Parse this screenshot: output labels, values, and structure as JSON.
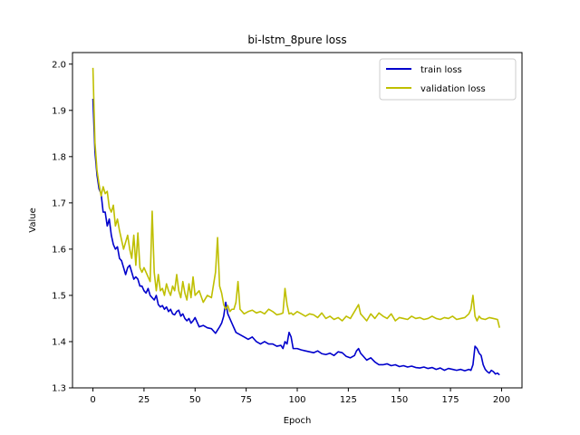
{
  "chart_data": {
    "type": "line",
    "title": "bi-lstm_8pure loss",
    "xlabel": "Epoch",
    "ylabel": "Value",
    "xlim": [
      -10,
      210
    ],
    "ylim": [
      1.3,
      2.025
    ],
    "xticks": [
      0,
      25,
      50,
      75,
      100,
      125,
      150,
      175,
      200
    ],
    "yticks": [
      1.3,
      1.4,
      1.5,
      1.6,
      1.7,
      1.8,
      1.9,
      2.0
    ],
    "xtick_labels": [
      "0",
      "25",
      "50",
      "75",
      "100",
      "125",
      "150",
      "175",
      "200"
    ],
    "ytick_labels": [
      "1.3",
      "1.4",
      "1.5",
      "1.6",
      "1.7",
      "1.8",
      "1.9",
      "2.0"
    ],
    "legend_position": "top-right",
    "grid": false,
    "series": [
      {
        "name": "train loss",
        "color": "#0000cc",
        "x": [
          0,
          1,
          2,
          3,
          4,
          5,
          6,
          7,
          8,
          9,
          10,
          11,
          12,
          13,
          14,
          15,
          16,
          17,
          18,
          19,
          20,
          21,
          22,
          23,
          24,
          25,
          26,
          27,
          28,
          29,
          30,
          31,
          32,
          33,
          34,
          35,
          36,
          37,
          38,
          39,
          40,
          41,
          42,
          43,
          44,
          45,
          46,
          47,
          48,
          49,
          50,
          52,
          54,
          56,
          58,
          60,
          61,
          62,
          63,
          64,
          65,
          66,
          67,
          68,
          70,
          72,
          74,
          76,
          78,
          80,
          82,
          84,
          86,
          88,
          90,
          92,
          93,
          94,
          95,
          96,
          97,
          98,
          100,
          102,
          104,
          106,
          108,
          110,
          112,
          114,
          116,
          118,
          120,
          122,
          124,
          126,
          128,
          129,
          130,
          131,
          132,
          134,
          136,
          138,
          140,
          142,
          144,
          146,
          148,
          150,
          152,
          154,
          156,
          158,
          160,
          162,
          164,
          166,
          168,
          170,
          172,
          174,
          176,
          178,
          180,
          182,
          184,
          185,
          186,
          187,
          188,
          189,
          190,
          191,
          192,
          193,
          194,
          195,
          196,
          197,
          198,
          199
        ],
        "values": [
          1.925,
          1.81,
          1.76,
          1.73,
          1.72,
          1.68,
          1.68,
          1.65,
          1.665,
          1.63,
          1.61,
          1.6,
          1.605,
          1.58,
          1.575,
          1.56,
          1.545,
          1.56,
          1.565,
          1.55,
          1.535,
          1.54,
          1.535,
          1.52,
          1.52,
          1.51,
          1.505,
          1.515,
          1.5,
          1.495,
          1.49,
          1.5,
          1.48,
          1.475,
          1.478,
          1.47,
          1.475,
          1.465,
          1.47,
          1.46,
          1.458,
          1.465,
          1.468,
          1.455,
          1.46,
          1.45,
          1.445,
          1.45,
          1.44,
          1.445,
          1.452,
          1.432,
          1.435,
          1.43,
          1.428,
          1.418,
          1.425,
          1.432,
          1.44,
          1.455,
          1.485,
          1.46,
          1.45,
          1.44,
          1.42,
          1.415,
          1.41,
          1.405,
          1.41,
          1.4,
          1.395,
          1.4,
          1.395,
          1.395,
          1.39,
          1.392,
          1.385,
          1.4,
          1.395,
          1.42,
          1.41,
          1.385,
          1.385,
          1.382,
          1.38,
          1.378,
          1.376,
          1.38,
          1.374,
          1.372,
          1.375,
          1.37,
          1.378,
          1.376,
          1.368,
          1.365,
          1.37,
          1.38,
          1.385,
          1.375,
          1.37,
          1.36,
          1.365,
          1.356,
          1.35,
          1.35,
          1.352,
          1.348,
          1.35,
          1.346,
          1.348,
          1.345,
          1.347,
          1.344,
          1.343,
          1.345,
          1.342,
          1.344,
          1.34,
          1.343,
          1.338,
          1.342,
          1.34,
          1.338,
          1.34,
          1.337,
          1.34,
          1.338,
          1.35,
          1.39,
          1.385,
          1.375,
          1.37,
          1.35,
          1.34,
          1.335,
          1.332,
          1.338,
          1.335,
          1.33,
          1.332,
          1.328
        ]
      },
      {
        "name": "validation loss",
        "color": "#bfbf00",
        "x": [
          0,
          1,
          2,
          3,
          4,
          5,
          6,
          7,
          8,
          9,
          10,
          11,
          12,
          13,
          14,
          15,
          16,
          17,
          18,
          19,
          20,
          21,
          22,
          23,
          24,
          25,
          26,
          27,
          28,
          29,
          30,
          31,
          32,
          33,
          34,
          35,
          36,
          37,
          38,
          39,
          40,
          41,
          42,
          43,
          44,
          45,
          46,
          47,
          48,
          49,
          50,
          52,
          54,
          56,
          58,
          60,
          61,
          62,
          63,
          64,
          65,
          66,
          67,
          68,
          69,
          70,
          71,
          72,
          74,
          76,
          78,
          80,
          82,
          84,
          86,
          88,
          90,
          92,
          93,
          94,
          95,
          96,
          97,
          98,
          100,
          102,
          104,
          106,
          108,
          110,
          112,
          114,
          116,
          118,
          120,
          122,
          124,
          126,
          128,
          130,
          131,
          132,
          134,
          136,
          138,
          140,
          142,
          144,
          146,
          148,
          150,
          152,
          154,
          156,
          158,
          160,
          162,
          164,
          166,
          168,
          170,
          172,
          174,
          176,
          178,
          180,
          182,
          184,
          185,
          186,
          187,
          188,
          189,
          190,
          192,
          194,
          196,
          198,
          199
        ],
        "values": [
          1.992,
          1.83,
          1.77,
          1.74,
          1.715,
          1.735,
          1.72,
          1.725,
          1.69,
          1.68,
          1.695,
          1.65,
          1.665,
          1.64,
          1.62,
          1.6,
          1.615,
          1.63,
          1.6,
          1.58,
          1.63,
          1.565,
          1.635,
          1.56,
          1.55,
          1.56,
          1.55,
          1.54,
          1.53,
          1.682,
          1.55,
          1.51,
          1.545,
          1.51,
          1.515,
          1.5,
          1.525,
          1.51,
          1.5,
          1.52,
          1.51,
          1.545,
          1.51,
          1.495,
          1.53,
          1.505,
          1.49,
          1.525,
          1.495,
          1.54,
          1.5,
          1.51,
          1.485,
          1.5,
          1.495,
          1.55,
          1.625,
          1.52,
          1.505,
          1.48,
          1.47,
          1.478,
          1.465,
          1.47,
          1.47,
          1.485,
          1.53,
          1.47,
          1.46,
          1.465,
          1.468,
          1.462,
          1.465,
          1.46,
          1.47,
          1.465,
          1.458,
          1.46,
          1.462,
          1.515,
          1.48,
          1.46,
          1.462,
          1.458,
          1.465,
          1.46,
          1.455,
          1.46,
          1.458,
          1.452,
          1.462,
          1.45,
          1.455,
          1.448,
          1.452,
          1.445,
          1.455,
          1.45,
          1.465,
          1.48,
          1.46,
          1.455,
          1.445,
          1.46,
          1.45,
          1.462,
          1.455,
          1.45,
          1.46,
          1.445,
          1.452,
          1.45,
          1.448,
          1.455,
          1.45,
          1.452,
          1.448,
          1.45,
          1.455,
          1.45,
          1.448,
          1.452,
          1.45,
          1.455,
          1.448,
          1.45,
          1.452,
          1.46,
          1.47,
          1.5,
          1.455,
          1.445,
          1.455,
          1.45,
          1.448,
          1.452,
          1.45,
          1.448,
          1.43
        ]
      }
    ]
  }
}
